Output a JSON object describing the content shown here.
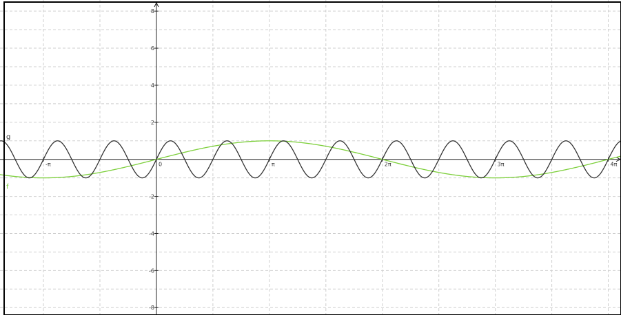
{
  "chart_data": {
    "type": "line",
    "xlim": [
      -4.35,
      12.92
    ],
    "ylim": [
      -8.4,
      8.6
    ],
    "grid": true,
    "x_ticks": [
      {
        "value": -3.14159,
        "label": "-π"
      },
      {
        "value": 0,
        "label": "0"
      },
      {
        "value": 3.14159,
        "label": "π"
      },
      {
        "value": 6.28319,
        "label": "2π"
      },
      {
        "value": 9.42478,
        "label": "3π"
      },
      {
        "value": 12.56637,
        "label": "4π"
      }
    ],
    "y_ticks": [
      {
        "value": 8,
        "label": "8"
      },
      {
        "value": 6,
        "label": "6"
      },
      {
        "value": 4,
        "label": "4"
      },
      {
        "value": 2,
        "label": "2"
      },
      {
        "value": -2,
        "label": "-2"
      },
      {
        "value": -4,
        "label": "-4"
      },
      {
        "value": -6,
        "label": "-6"
      },
      {
        "value": -8,
        "label": "-8"
      }
    ],
    "series": [
      {
        "name": "f",
        "expression": "sin(x/2)",
        "amplitude": 1,
        "frequency": 0.5,
        "color": "#7ccf3a"
      },
      {
        "name": "g",
        "expression": "sin(4x)",
        "amplitude": 1,
        "frequency": 4,
        "color": "#333333"
      }
    ]
  },
  "colors": {
    "axis": "#222222",
    "grid": "#cfcfcf",
    "border": "#000000"
  }
}
